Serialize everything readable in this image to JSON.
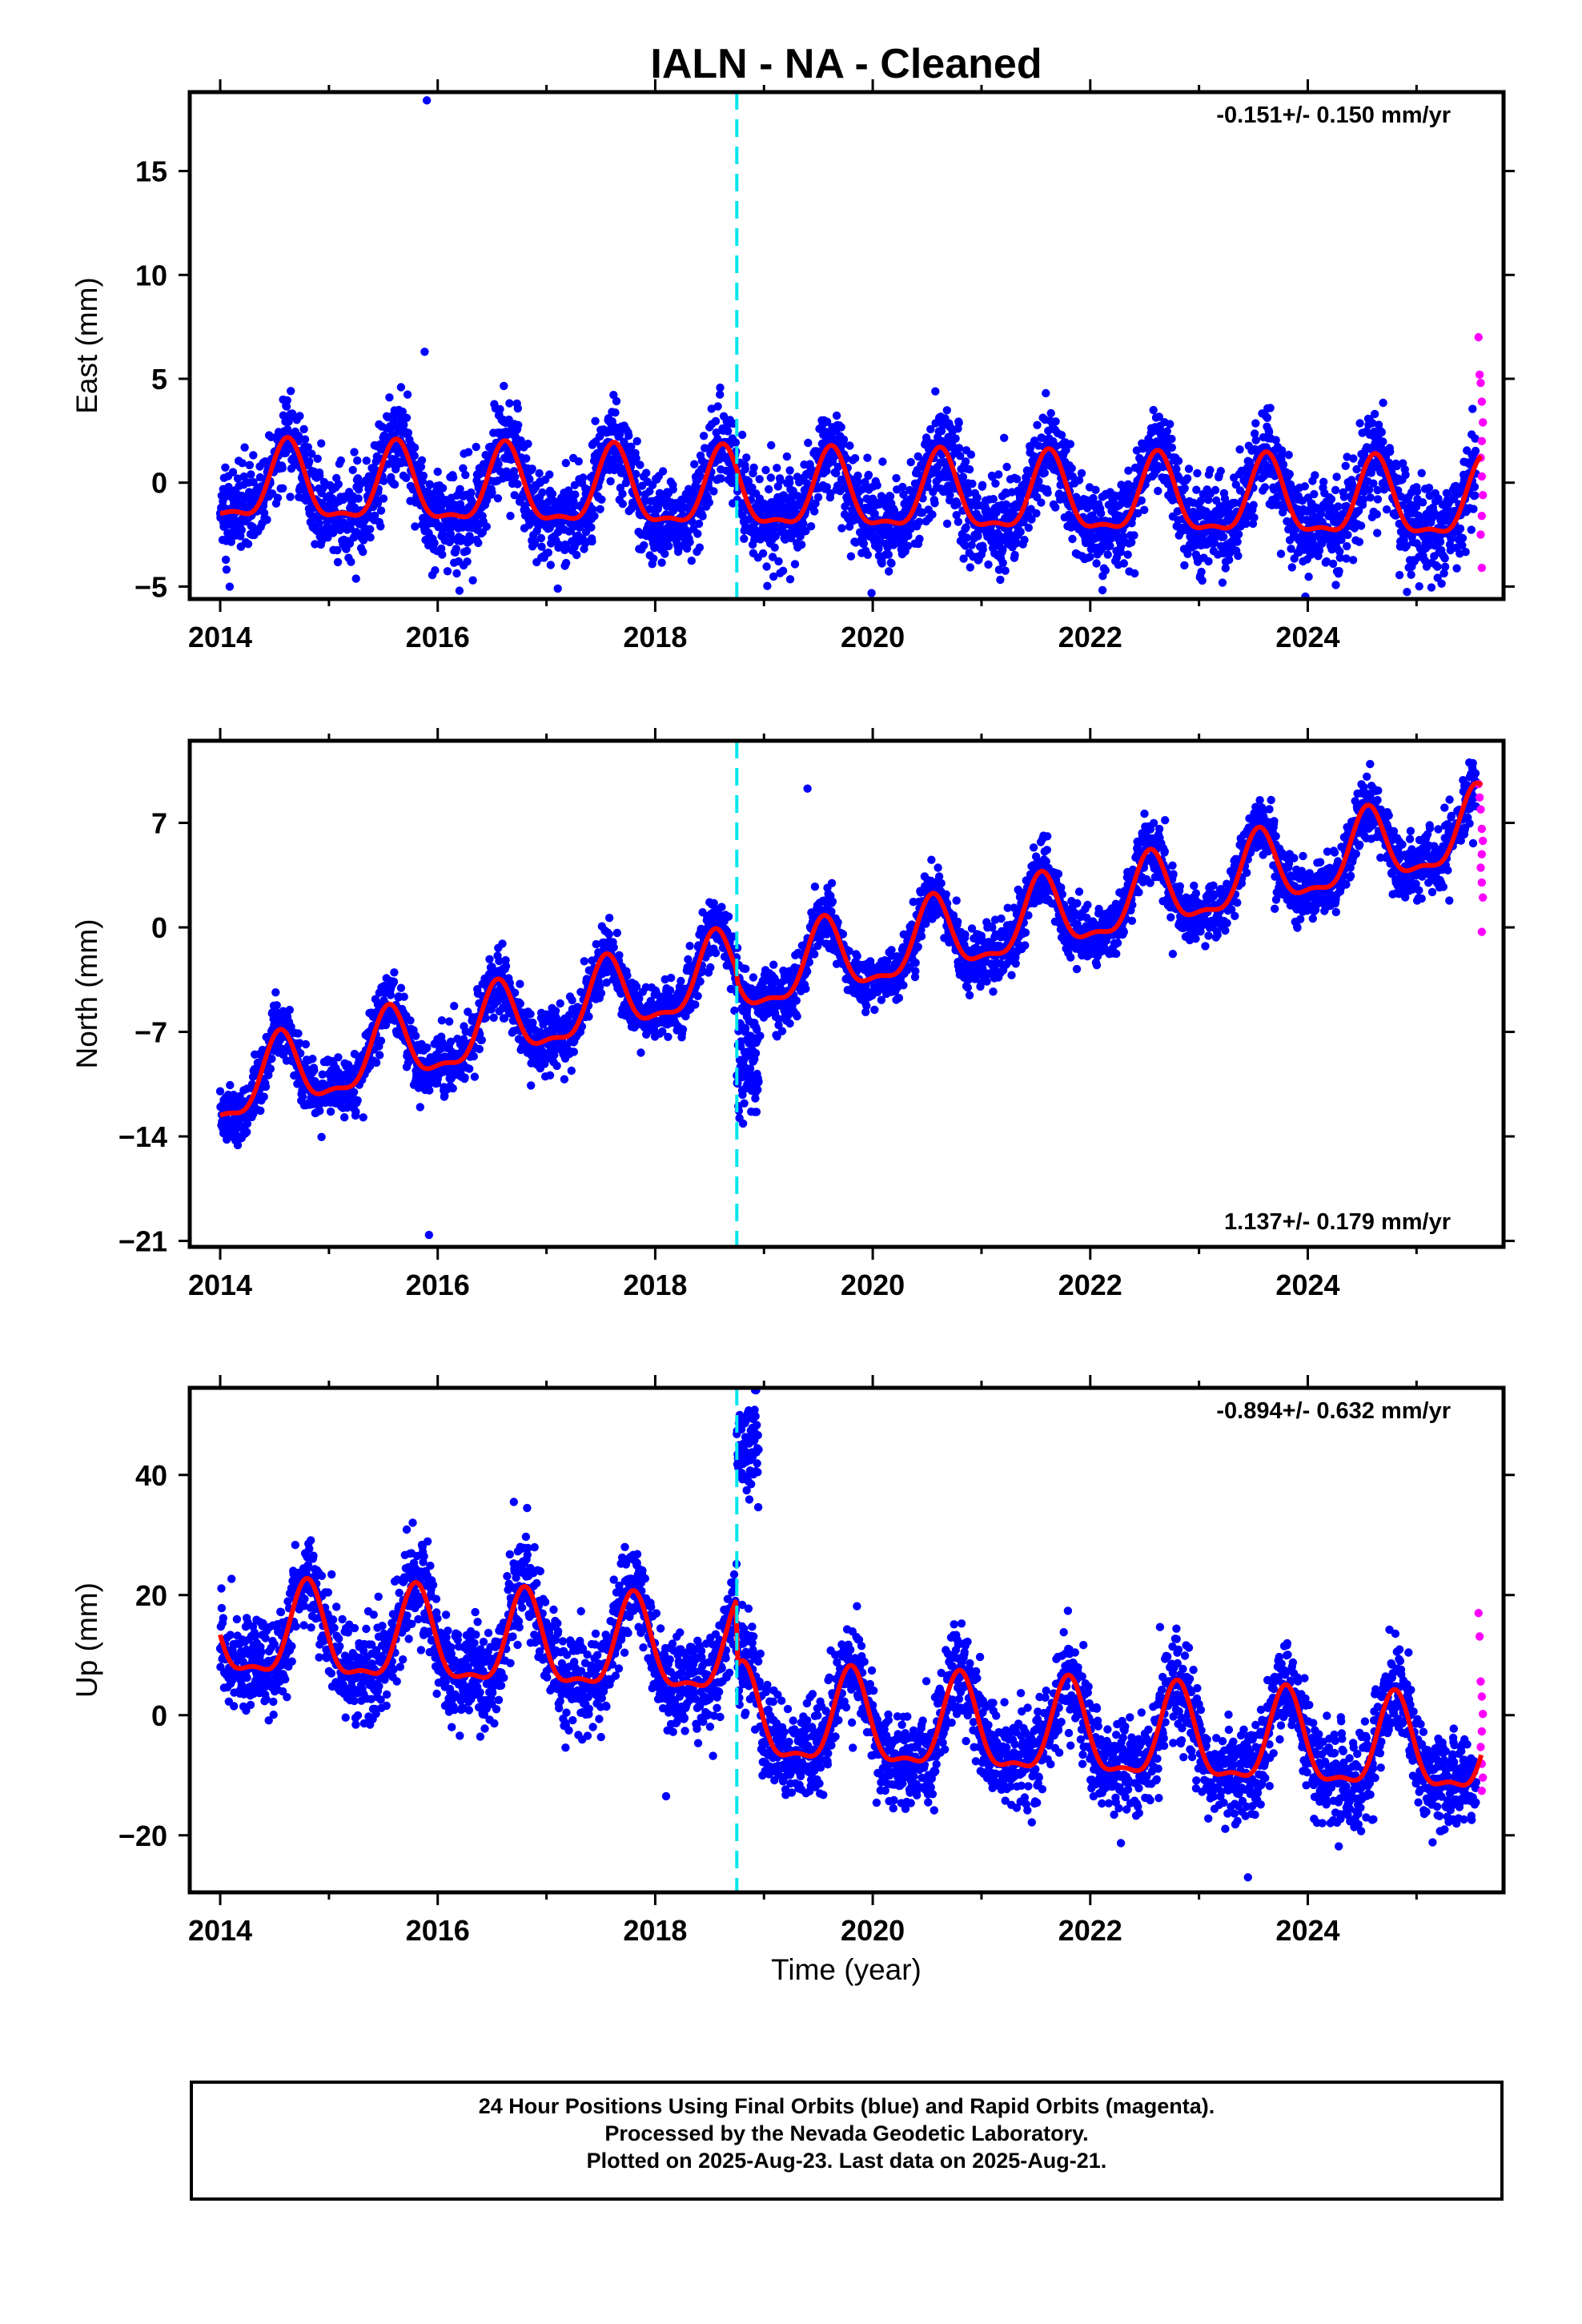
{
  "title": "IALN  - NA - Cleaned",
  "colors": {
    "final_orbits": "#0000ff",
    "rapid_orbits": "#ff00ff",
    "model_fit": "#ff0000",
    "antenna_change": "#00e5ee",
    "frame": "#000000"
  },
  "xlabel": "Time (year)",
  "footer": {
    "line1": "24 Hour Positions Using Final Orbits (blue) and Rapid Orbits (magenta).",
    "line2": "Processed by the Nevada Geodetic Laboratory.",
    "line3": "Plotted on 2025-Aug-23. Last data on 2025-Aug-21."
  },
  "chart_data": [
    {
      "type": "scatter",
      "ylabel": "East (mm)",
      "rate_label": "-0.151+/- 0.150 mm/yr",
      "rate_position": "top-right",
      "xlim": [
        2013.72,
        2025.8
      ],
      "ylim": [
        -5.6,
        18.8
      ],
      "x_ticks": [
        2014,
        2016,
        2018,
        2020,
        2022,
        2024
      ],
      "x_tick_labels": [
        "2014",
        "2016",
        "2018",
        "2020",
        "2022",
        "2024"
      ],
      "y_ticks": [
        -5,
        0,
        5,
        10,
        15
      ],
      "y_tick_labels": [
        "−5",
        "0",
        "5",
        "10",
        "15"
      ],
      "equipment_change_x": 2018.75,
      "model": {
        "trend": [
          [
            2014.0,
            -0.2
          ],
          [
            2025.6,
            -1.1
          ]
        ],
        "annual_amplitude": 1.8,
        "annual_peak_phase": 0.62
      },
      "series": [
        {
          "name": "Final Orbits",
          "x_range": [
            2014.0,
            2025.55
          ],
          "noise_sd": 1.1,
          "outliers": [
            [
              2015.9,
              18.4
            ],
            [
              2015.88,
              6.3
            ],
            [
              2016.2,
              -5.2
            ]
          ]
        },
        {
          "name": "Rapid Orbits",
          "points": [
            [
              2025.57,
              7.0
            ],
            [
              2025.58,
              5.2
            ],
            [
              2025.59,
              4.8
            ],
            [
              2025.6,
              3.9
            ],
            [
              2025.61,
              2.9
            ],
            [
              2025.6,
              2.0
            ],
            [
              2025.59,
              1.2
            ],
            [
              2025.6,
              0.3
            ],
            [
              2025.61,
              -0.6
            ],
            [
              2025.6,
              -1.6
            ],
            [
              2025.59,
              -2.5
            ],
            [
              2025.6,
              -4.1
            ]
          ]
        }
      ]
    },
    {
      "type": "scatter",
      "ylabel": "North (mm)",
      "rate_label": "1.137+/- 0.179 mm/yr",
      "rate_position": "bottom-right",
      "xlim": [
        2013.72,
        2025.8
      ],
      "ylim": [
        -21.4,
        12.5
      ],
      "x_ticks": [
        2014,
        2016,
        2018,
        2020,
        2022,
        2024
      ],
      "x_tick_labels": [
        "2014",
        "2016",
        "2018",
        "2020",
        "2022",
        "2024"
      ],
      "y_ticks": [
        -21,
        -14,
        -7,
        0,
        7
      ],
      "y_tick_labels": [
        "−21",
        "−14",
        "−7",
        "0",
        "7"
      ],
      "equipment_change_x": 2018.75,
      "model": {
        "trend": [
          [
            2014.0,
            -11.0
          ],
          [
            2018.74,
            -3.0
          ],
          [
            2018.76,
            -3.6
          ],
          [
            2025.6,
            6.5
          ]
        ],
        "annual_amplitude": 2.4,
        "annual_peak_phase": 0.55
      },
      "series": [
        {
          "name": "Final Orbits",
          "x_range": [
            2014.0,
            2025.55
          ],
          "noise_sd": 1.0,
          "outliers": [
            [
              2015.92,
              -20.6
            ],
            [
              2019.4,
              9.3
            ]
          ],
          "offset_cluster": {
            "x_range": [
              2018.75,
              2018.95
            ],
            "y_center": -9.5,
            "sd": 1.5
          }
        },
        {
          "name": "Rapid Orbits",
          "points": [
            [
              2025.57,
              9.6
            ],
            [
              2025.58,
              8.7
            ],
            [
              2025.59,
              7.9
            ],
            [
              2025.6,
              6.6
            ],
            [
              2025.61,
              5.8
            ],
            [
              2025.6,
              4.9
            ],
            [
              2025.59,
              4.0
            ],
            [
              2025.6,
              3.0
            ],
            [
              2025.61,
              2.0
            ],
            [
              2025.6,
              -0.3
            ]
          ]
        }
      ]
    },
    {
      "type": "scatter",
      "ylabel": "Up (mm)",
      "rate_label": "-0.894+/- 0.632 mm/yr",
      "rate_position": "top-right",
      "xlim": [
        2013.72,
        2025.8
      ],
      "ylim": [
        -29.5,
        54.5
      ],
      "x_ticks": [
        2014,
        2016,
        2018,
        2020,
        2022,
        2024
      ],
      "x_tick_labels": [
        "2014",
        "2016",
        "2018",
        "2020",
        "2022",
        "2024"
      ],
      "y_ticks": [
        -20,
        0,
        20,
        40
      ],
      "y_tick_labels": [
        "−20",
        "0",
        "20",
        "40"
      ],
      "equipment_change_x": 2018.75,
      "model": {
        "trend": [
          [
            2014.0,
            13.2
          ],
          [
            2018.74,
            10.0
          ],
          [
            2018.76,
            -1.0
          ],
          [
            2025.6,
            -6.5
          ]
        ],
        "annual_amplitude": 7.5,
        "annual_peak_phase": 0.8
      },
      "series": [
        {
          "name": "Final Orbits",
          "x_range": [
            2014.0,
            2025.55
          ],
          "noise_sd": 4.0,
          "outliers": [
            [
              2016.7,
              35.5
            ],
            [
              2018.1,
              -13.5
            ],
            [
              2023.45,
              -27.0
            ]
          ],
          "offset_cluster": {
            "x_range": [
              2018.75,
              2018.95
            ],
            "y_center": 44.0,
            "sd": 4.0
          }
        },
        {
          "name": "Rapid Orbits",
          "points": [
            [
              2025.57,
              17.0
            ],
            [
              2025.58,
              13.1
            ],
            [
              2025.59,
              5.6
            ],
            [
              2025.6,
              3.1
            ],
            [
              2025.61,
              0.2
            ],
            [
              2025.6,
              -2.7
            ],
            [
              2025.59,
              -5.3
            ],
            [
              2025.6,
              -8.1
            ],
            [
              2025.61,
              -10.4
            ],
            [
              2025.6,
              -12.6
            ]
          ]
        }
      ]
    }
  ]
}
